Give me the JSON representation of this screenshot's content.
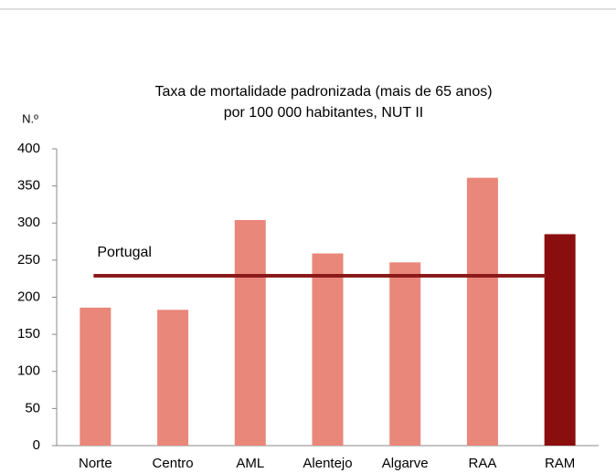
{
  "chart_data": {
    "type": "bar",
    "title": [
      "Taxa de mortalidade padronizada (mais de 65 anos)",
      "por 100 000 habitantes, NUT II"
    ],
    "y_label": "N.º",
    "categories": [
      "Norte",
      "Centro",
      "AML",
      "Alentejo",
      "Algarve",
      "RAA",
      "RAM"
    ],
    "values": [
      186,
      183,
      304,
      259,
      247,
      361,
      285
    ],
    "colors": [
      "#e8877a",
      "#e8877a",
      "#e8877a",
      "#e8877a",
      "#e8877a",
      "#e8877a",
      "#8b0e0e"
    ],
    "reference": {
      "label": "Portugal",
      "value": 229,
      "color": "#8b1a1a"
    },
    "ylim": [
      0,
      400
    ],
    "yticks": [
      0,
      50,
      100,
      150,
      200,
      250,
      300,
      350,
      400
    ]
  }
}
